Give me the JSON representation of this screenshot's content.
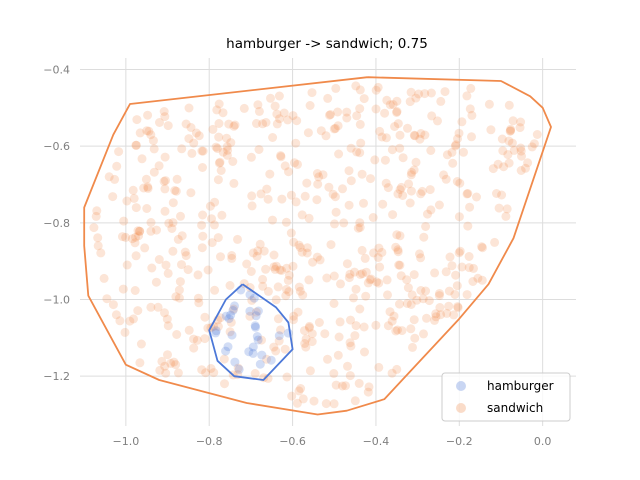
{
  "chart_data": {
    "type": "scatter",
    "title": "hamburger -> sandwich; 0.75",
    "xlabel": "",
    "ylabel": "",
    "xlim": [
      -1.11,
      0.08
    ],
    "ylim": [
      -1.33,
      -0.37
    ],
    "x_ticks": [
      -1.0,
      -0.8,
      -0.6,
      -0.4,
      -0.2,
      0.0
    ],
    "x_tick_labels": [
      "−1.0",
      "−0.8",
      "−0.6",
      "−0.4",
      "−0.2",
      "0.0"
    ],
    "y_ticks": [
      -0.4,
      -0.6,
      -0.8,
      -1.0,
      -1.2
    ],
    "y_tick_labels": [
      "−0.4",
      "−0.6",
      "−0.8",
      "−1.0",
      "−1.2"
    ],
    "grid": true,
    "legend_position": "lower-right",
    "series": [
      {
        "name": "hamburger",
        "color": "#4c78d8",
        "point_count": 30,
        "x_range": [
          -0.8,
          -0.6
        ],
        "y_range": [
          -1.21,
          -0.96
        ],
        "hull": [
          [
            -0.72,
            -0.96
          ],
          [
            -0.64,
            -1.02
          ],
          [
            -0.61,
            -1.06
          ],
          [
            -0.6,
            -1.13
          ],
          [
            -0.67,
            -1.21
          ],
          [
            -0.74,
            -1.2
          ],
          [
            -0.78,
            -1.16
          ],
          [
            -0.8,
            -1.08
          ],
          [
            -0.76,
            -1.0
          ]
        ]
      },
      {
        "name": "sandwich",
        "color": "#f08a4b",
        "point_count": 600,
        "x_range": [
          -1.1,
          0.02
        ],
        "y_range": [
          -1.3,
          -0.42
        ],
        "hull": [
          [
            -0.42,
            -0.42
          ],
          [
            -0.1,
            -0.43
          ],
          [
            -0.03,
            -0.47
          ],
          [
            0.0,
            -0.5
          ],
          [
            0.02,
            -0.55
          ],
          [
            -0.07,
            -0.84
          ],
          [
            -0.13,
            -0.96
          ],
          [
            -0.2,
            -1.05
          ],
          [
            -0.38,
            -1.26
          ],
          [
            -0.47,
            -1.29
          ],
          [
            -0.54,
            -1.3
          ],
          [
            -0.71,
            -1.27
          ],
          [
            -0.92,
            -1.21
          ],
          [
            -1.0,
            -1.17
          ],
          [
            -1.09,
            -0.99
          ],
          [
            -1.1,
            -0.86
          ],
          [
            -1.1,
            -0.76
          ],
          [
            -1.03,
            -0.57
          ],
          [
            -0.99,
            -0.49
          ]
        ]
      }
    ],
    "legend": [
      {
        "label": "hamburger",
        "color": "#4c78d8"
      },
      {
        "label": "sandwich",
        "color": "#f08a4b"
      }
    ]
  }
}
